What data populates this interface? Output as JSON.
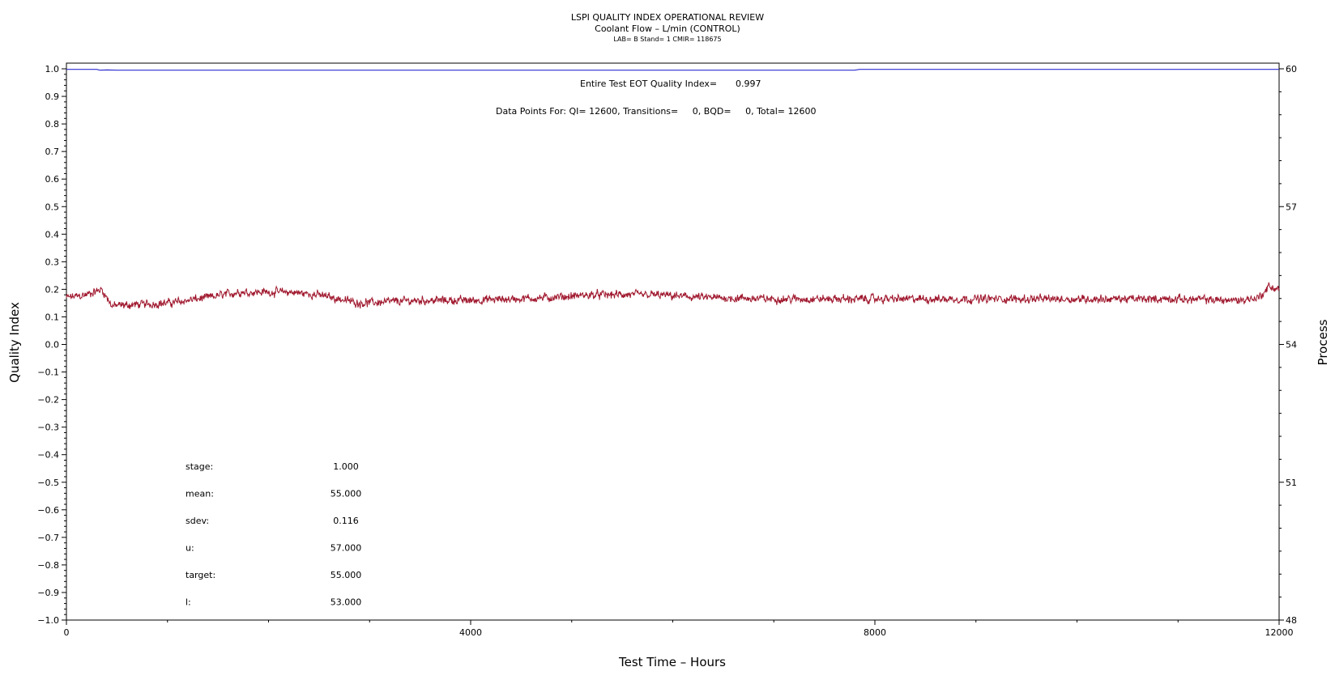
{
  "chart_data": {
    "type": "line",
    "title": "LSPI QUALITY INDEX OPERATIONAL REVIEW",
    "subtitle": "Coolant Flow – L/min (CONTROL)",
    "subsubtitle": "LAB= B Stand= 1 CMIR= 118675",
    "xlabel": "Test Time – Hours",
    "ylabel": "Quality Index",
    "y2label": "Process",
    "xlim": [
      0,
      12000
    ],
    "ylim": [
      -1.0,
      1.0
    ],
    "y2lim": [
      48,
      60
    ],
    "x_ticks": [
      "0",
      "4000",
      "8000",
      "12000"
    ],
    "y_ticks": [
      "1.0",
      "0.9",
      "0.8",
      "0.7",
      "0.6",
      "0.5",
      "0.4",
      "0.3",
      "0.2",
      "0.1",
      "0.0",
      "−0.1",
      "−0.2",
      "−0.3",
      "−0.4",
      "−0.5",
      "−0.6",
      "−0.7",
      "−0.8",
      "−0.9",
      "−1.0"
    ],
    "y2_ticks": [
      "60",
      "57",
      "54",
      "51",
      "48"
    ],
    "grid": false,
    "annotations": {
      "eot_label": "Entire Test EOT Quality Index=",
      "eot_value": "0.997",
      "data_points": "Data Points For: QI= 12600, Transitions=     0, BQD=     0, Total= 12600"
    },
    "stats": [
      {
        "label": "stage:",
        "value": "1.000"
      },
      {
        "label": "mean:",
        "value": "55.000"
      },
      {
        "label": "sdev:",
        "value": "0.116"
      },
      {
        "label": "u:",
        "value": "57.000"
      },
      {
        "label": "target:",
        "value": "55.000"
      },
      {
        "label": "l:",
        "value": "53.000"
      }
    ],
    "series": [
      {
        "color": "#2b2bd0",
        "axis": "left",
        "points": [
          [
            0,
            0.998
          ],
          [
            300,
            0.998
          ],
          [
            330,
            0.995
          ],
          [
            400,
            0.996
          ],
          [
            500,
            0.995
          ],
          [
            7800,
            0.995
          ],
          [
            7850,
            0.998
          ],
          [
            12000,
            0.998
          ]
        ]
      },
      {
        "color": "#a0182e",
        "axis": "left",
        "noise": 0.018,
        "points": [
          [
            0,
            0.17
          ],
          [
            200,
            0.18
          ],
          [
            350,
            0.2
          ],
          [
            450,
            0.14
          ],
          [
            1000,
            0.15
          ],
          [
            1400,
            0.17
          ],
          [
            1700,
            0.19
          ],
          [
            2200,
            0.19
          ],
          [
            2500,
            0.18
          ],
          [
            2900,
            0.15
          ],
          [
            3500,
            0.16
          ],
          [
            4000,
            0.16
          ],
          [
            4800,
            0.17
          ],
          [
            5200,
            0.18
          ],
          [
            5800,
            0.18
          ],
          [
            6300,
            0.17
          ],
          [
            7000,
            0.165
          ],
          [
            8000,
            0.165
          ],
          [
            9000,
            0.165
          ],
          [
            10000,
            0.165
          ],
          [
            11000,
            0.165
          ],
          [
            11600,
            0.16
          ],
          [
            11800,
            0.17
          ],
          [
            11900,
            0.21
          ],
          [
            12000,
            0.2
          ]
        ]
      }
    ]
  }
}
